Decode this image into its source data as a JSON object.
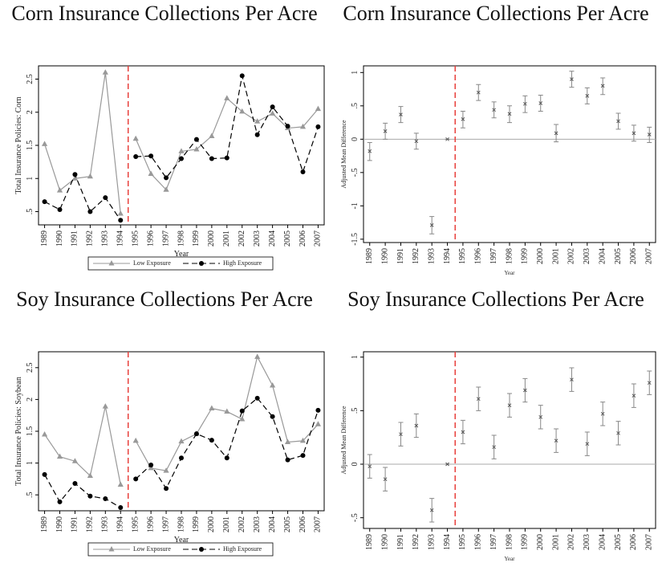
{
  "chart_data": [
    {
      "type": "line",
      "title": "Corn Insurance Collections Per Acre",
      "xlabel": "Year",
      "ylabel": "Total Insurance Policies: Corn",
      "x": [
        1989,
        1990,
        1991,
        1992,
        1993,
        1994,
        1995,
        1996,
        1997,
        1998,
        1999,
        2000,
        2001,
        2002,
        2003,
        2004,
        2005,
        2006,
        2007
      ],
      "xlim": [
        1988.6,
        2007.4
      ],
      "xticks": [
        1989,
        1990,
        1991,
        1992,
        1993,
        1994,
        1995,
        1996,
        1997,
        1998,
        1999,
        2000,
        2001,
        2002,
        2003,
        2004,
        2005,
        2006,
        2007
      ],
      "ylim": [
        0.3,
        2.7
      ],
      "yticks": [
        {
          "value": 0.5,
          "label": ".5"
        },
        1,
        1.5,
        2,
        2.5
      ],
      "vline": 1994.5,
      "series": [
        {
          "name": "Low Exposure",
          "color": "#999999",
          "values": [
            1.52,
            0.82,
            1.0,
            1.03,
            2.6,
            0.47,
            1.6,
            1.07,
            0.83,
            1.41,
            1.44,
            1.64,
            2.21,
            2.01,
            1.86,
            1.98,
            1.76,
            1.78,
            2.05
          ]
        },
        {
          "name": "High Exposure",
          "color": "#000000",
          "values": [
            0.65,
            0.53,
            1.06,
            0.5,
            0.71,
            0.37,
            1.33,
            1.34,
            1.01,
            1.3,
            1.59,
            1.3,
            1.31,
            2.55,
            1.66,
            2.08,
            1.79,
            1.1,
            1.78
          ]
        }
      ]
    },
    {
      "type": "errorbar",
      "title": "Corn Insurance Collections Per Acre",
      "xlabel": "Year",
      "ylabel": "Adjusted Mean Difference",
      "x": [
        1989,
        1990,
        1991,
        1992,
        1993,
        1994,
        1995,
        1996,
        1997,
        1998,
        1999,
        2000,
        2001,
        2002,
        2003,
        2004,
        2005,
        2006,
        2007
      ],
      "xlim": [
        1988.6,
        2007.4
      ],
      "xticks": [
        1989,
        1990,
        1991,
        1992,
        1993,
        1994,
        1995,
        1996,
        1997,
        1998,
        1999,
        2000,
        2001,
        2002,
        2003,
        2004,
        2005,
        2006,
        2007
      ],
      "ylim": [
        -1.55,
        1.1
      ],
      "yticks": [
        -1.5,
        -1,
        {
          "value": -0.5,
          "label": "-.5"
        },
        0,
        {
          "value": 0.5,
          "label": ".5"
        },
        1
      ],
      "vline": 1994.5,
      "hline": 0,
      "color": "#888888",
      "values": [
        -0.18,
        0.12,
        0.37,
        -0.03,
        -1.29,
        0,
        0.3,
        0.7,
        0.44,
        0.38,
        0.53,
        0.54,
        0.09,
        0.9,
        0.65,
        0.8,
        0.27,
        0.09,
        0.07
      ],
      "lower": [
        -0.32,
        0.0,
        0.25,
        -0.15,
        -1.42,
        0,
        0.17,
        0.58,
        0.32,
        0.25,
        0.4,
        0.42,
        -0.04,
        0.78,
        0.53,
        0.67,
        0.15,
        -0.03,
        -0.05
      ],
      "upper": [
        -0.05,
        0.24,
        0.49,
        0.09,
        -1.16,
        0,
        0.42,
        0.82,
        0.56,
        0.5,
        0.65,
        0.66,
        0.22,
        1.02,
        0.77,
        0.92,
        0.39,
        0.21,
        0.18
      ]
    },
    {
      "type": "line",
      "title": "Soy Insurance Collections Per Acre",
      "xlabel": "Year",
      "ylabel": "Total Insurance Policies: Soybean",
      "x": [
        1989,
        1990,
        1991,
        1992,
        1993,
        1994,
        1995,
        1996,
        1997,
        1998,
        1999,
        2000,
        2001,
        2002,
        2003,
        2004,
        2005,
        2006,
        2007
      ],
      "xlim": [
        1988.6,
        2007.4
      ],
      "xticks": [
        1989,
        1990,
        1991,
        1992,
        1993,
        1994,
        1995,
        1996,
        1997,
        1998,
        1999,
        2000,
        2001,
        2002,
        2003,
        2004,
        2005,
        2006,
        2007
      ],
      "ylim": [
        0.25,
        2.75
      ],
      "yticks": [
        {
          "value": 0.5,
          "label": ".5"
        },
        1,
        1.5,
        2,
        2.5
      ],
      "vline": 1994.5,
      "series": [
        {
          "name": "Low Exposure",
          "color": "#999999",
          "values": [
            1.45,
            1.1,
            1.03,
            0.8,
            1.89,
            0.66,
            1.35,
            0.92,
            0.88,
            1.34,
            1.46,
            1.86,
            1.81,
            1.69,
            2.67,
            2.22,
            1.33,
            1.35,
            1.61
          ]
        },
        {
          "name": "High Exposure",
          "color": "#000000",
          "values": [
            0.82,
            0.39,
            0.68,
            0.48,
            0.44,
            0.3,
            0.75,
            0.97,
            0.6,
            1.08,
            1.46,
            1.36,
            1.08,
            1.82,
            2.02,
            1.73,
            1.05,
            1.12,
            1.83
          ]
        }
      ]
    },
    {
      "type": "errorbar",
      "title": "Soy Insurance Collections Per Acre",
      "xlabel": "Year",
      "ylabel": "Adjusted Mean Difference",
      "x": [
        1989,
        1990,
        1991,
        1992,
        1993,
        1994,
        1995,
        1996,
        1997,
        1998,
        1999,
        2000,
        2001,
        2002,
        2003,
        2004,
        2005,
        2006,
        2007
      ],
      "xlim": [
        1988.6,
        2007.4
      ],
      "xticks": [
        1989,
        1990,
        1991,
        1992,
        1993,
        1994,
        1995,
        1996,
        1997,
        1998,
        1999,
        2000,
        2001,
        2002,
        2003,
        2004,
        2005,
        2006,
        2007
      ],
      "ylim": [
        -0.6,
        1.05
      ],
      "yticks": [
        {
          "value": -0.5,
          "label": "-.5"
        },
        0,
        {
          "value": 0.5,
          "label": ".5"
        },
        1
      ],
      "vline": 1994.5,
      "hline": 0,
      "color": "#888888",
      "values": [
        -0.02,
        -0.14,
        0.28,
        0.36,
        -0.43,
        0,
        0.3,
        0.61,
        0.16,
        0.55,
        0.69,
        0.44,
        0.22,
        0.79,
        0.19,
        0.47,
        0.29,
        0.64,
        0.76
      ],
      "lower": [
        -0.13,
        -0.25,
        0.17,
        0.25,
        -0.54,
        0,
        0.19,
        0.5,
        0.05,
        0.44,
        0.58,
        0.33,
        0.11,
        0.68,
        0.08,
        0.36,
        0.18,
        0.53,
        0.65
      ],
      "upper": [
        0.09,
        -0.03,
        0.39,
        0.47,
        -0.32,
        0,
        0.41,
        0.72,
        0.27,
        0.66,
        0.8,
        0.55,
        0.33,
        0.9,
        0.3,
        0.58,
        0.4,
        0.75,
        0.87
      ]
    }
  ]
}
